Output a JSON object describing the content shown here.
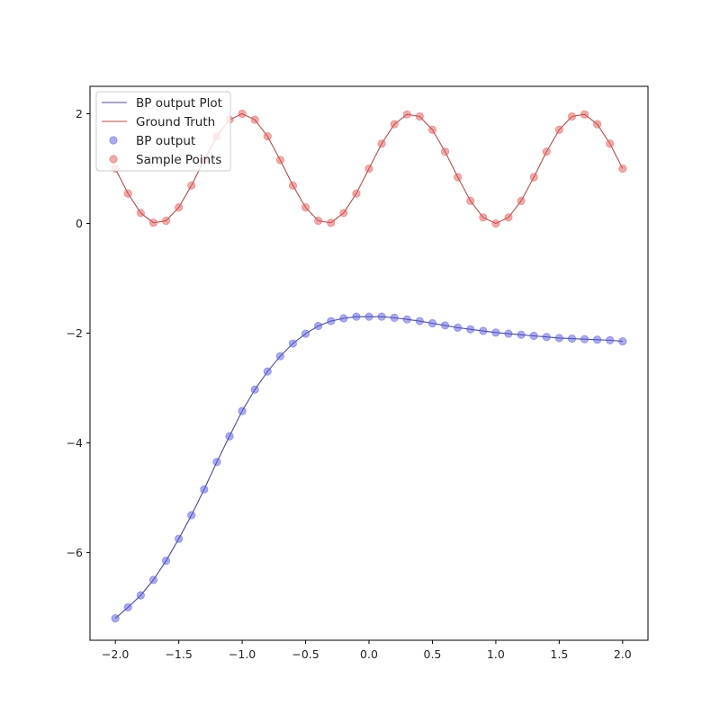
{
  "chart_data": {
    "type": "line",
    "xlim": [
      -2.2,
      2.2
    ],
    "ylim": [
      -7.6,
      2.5
    ],
    "xticks": [
      -2.0,
      -1.5,
      -1.0,
      -0.5,
      0.0,
      0.5,
      1.0,
      1.5,
      2.0
    ],
    "xtick_labels": [
      "−2.0",
      "−1.5",
      "−1.0",
      "−0.5",
      "0.0",
      "0.5",
      "1.0",
      "1.5",
      "2.0"
    ],
    "yticks": [
      -6,
      -4,
      -2,
      0,
      2
    ],
    "ytick_labels": [
      "−6",
      "−4",
      "−2",
      "0",
      "2"
    ],
    "grid": false,
    "legend": {
      "position": "top-left",
      "entries": [
        "BP output Plot",
        "Ground Truth",
        "BP output",
        "Sample Points"
      ]
    },
    "x": [
      -2.0,
      -1.9,
      -1.8,
      -1.7,
      -1.6,
      -1.5,
      -1.4,
      -1.3,
      -1.2,
      -1.1,
      -1.0,
      -0.9,
      -0.8,
      -0.7,
      -0.6,
      -0.5,
      -0.4,
      -0.3,
      -0.2,
      -0.1,
      0.0,
      0.1,
      0.2,
      0.3,
      0.4,
      0.5,
      0.6,
      0.7,
      0.8,
      0.9,
      1.0,
      1.1,
      1.2,
      1.3,
      1.4,
      1.5,
      1.6,
      1.7,
      1.8,
      1.9,
      2.0
    ],
    "series": [
      {
        "name": "BP output Plot",
        "kind": "line",
        "color": "#4b4b96",
        "y": [
          -7.2,
          -7.0,
          -6.78,
          -6.5,
          -6.15,
          -5.75,
          -5.32,
          -4.85,
          -4.35,
          -3.88,
          -3.42,
          -3.03,
          -2.7,
          -2.42,
          -2.19,
          -2.01,
          -1.87,
          -1.78,
          -1.73,
          -1.7,
          -1.7,
          -1.7,
          -1.72,
          -1.75,
          -1.78,
          -1.82,
          -1.86,
          -1.9,
          -1.93,
          -1.96,
          -1.99,
          -2.01,
          -2.03,
          -2.05,
          -2.07,
          -2.09,
          -2.1,
          -2.11,
          -2.12,
          -2.13,
          -2.15
        ]
      },
      {
        "name": "Ground Truth",
        "kind": "line",
        "color": "#b44b4b",
        "y": [
          1.0,
          0.545,
          0.191,
          0.012,
          0.049,
          0.293,
          0.691,
          1.156,
          1.588,
          1.891,
          2.0,
          1.891,
          1.588,
          1.156,
          0.691,
          0.293,
          0.049,
          0.012,
          0.191,
          0.545,
          1.0,
          1.455,
          1.809,
          1.988,
          1.951,
          1.707,
          1.309,
          0.844,
          0.412,
          0.109,
          0.0,
          0.109,
          0.412,
          0.844,
          1.309,
          1.707,
          1.951,
          1.988,
          1.809,
          1.455,
          1.0
        ]
      },
      {
        "name": "BP output",
        "kind": "scatter",
        "color": "#5555e0",
        "y": [
          -7.2,
          -7.0,
          -6.78,
          -6.5,
          -6.15,
          -5.75,
          -5.32,
          -4.85,
          -4.35,
          -3.88,
          -3.42,
          -3.03,
          -2.7,
          -2.42,
          -2.19,
          -2.01,
          -1.87,
          -1.78,
          -1.73,
          -1.7,
          -1.7,
          -1.7,
          -1.72,
          -1.75,
          -1.78,
          -1.82,
          -1.86,
          -1.9,
          -1.93,
          -1.96,
          -1.99,
          -2.01,
          -2.03,
          -2.05,
          -2.07,
          -2.09,
          -2.1,
          -2.11,
          -2.12,
          -2.13,
          -2.15
        ]
      },
      {
        "name": "Sample Points",
        "kind": "scatter",
        "color": "#e05555",
        "y": [
          1.0,
          0.545,
          0.191,
          0.012,
          0.049,
          0.293,
          0.691,
          1.156,
          1.588,
          1.891,
          2.0,
          1.891,
          1.588,
          1.156,
          0.691,
          0.293,
          0.049,
          0.012,
          0.191,
          0.545,
          1.0,
          1.455,
          1.809,
          1.988,
          1.951,
          1.707,
          1.309,
          0.844,
          0.412,
          0.109,
          0.0,
          0.109,
          0.412,
          0.844,
          1.309,
          1.707,
          1.951,
          1.988,
          1.809,
          1.455,
          1.0
        ]
      }
    ]
  }
}
